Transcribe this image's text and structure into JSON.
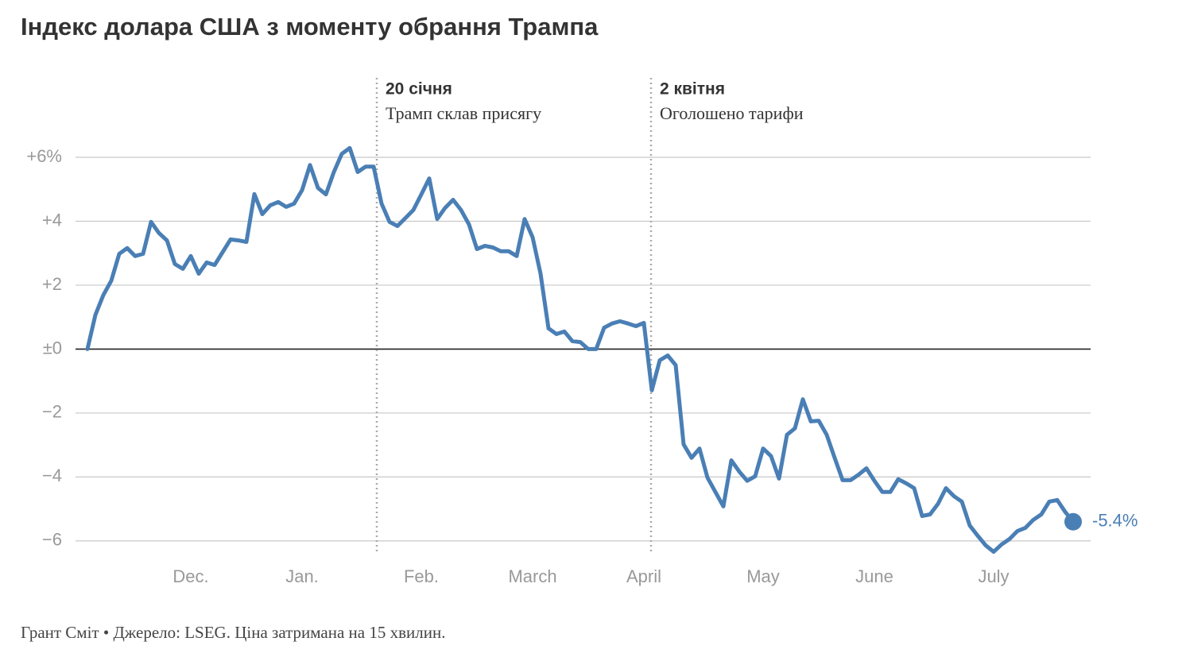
{
  "chart_data": {
    "type": "line",
    "title": "Індекс долара США з моменту обрання Трампа",
    "footer": "Грант Сміт • Джерело: LSEG. Ціна затримана на 15 хвилин.",
    "annotations": [
      {
        "title": "20 січня",
        "text": "Трамп склав присягу"
      },
      {
        "title": "2 квітня",
        "text": "Оголошено тарифи"
      }
    ],
    "categories": [
      null,
      null,
      null,
      null,
      null,
      null,
      null,
      null,
      null,
      null,
      null,
      null,
      null,
      "Dec.",
      null,
      null,
      null,
      null,
      null,
      null,
      null,
      null,
      null,
      null,
      null,
      null,
      null,
      "Jan.",
      null,
      null,
      null,
      null,
      null,
      null,
      null,
      null,
      null,
      null,
      null,
      null,
      null,
      null,
      "Feb.",
      null,
      null,
      null,
      null,
      null,
      null,
      null,
      null,
      null,
      null,
      null,
      null,
      null,
      "March",
      null,
      null,
      null,
      null,
      null,
      null,
      null,
      null,
      null,
      null,
      null,
      null,
      null,
      "April",
      null,
      null,
      null,
      null,
      null,
      null,
      null,
      null,
      null,
      null,
      null,
      null,
      null,
      null,
      "May",
      null,
      null,
      null,
      null,
      null,
      null,
      null,
      null,
      null,
      null,
      null,
      null,
      null,
      "June",
      null,
      null,
      null,
      null,
      null,
      null,
      null,
      null,
      null,
      null,
      null,
      null,
      null,
      null,
      "July",
      null,
      null,
      null,
      null,
      null,
      null,
      null,
      null,
      null,
      null
    ],
    "series": [
      {
        "name": "Індекс долара США",
        "color": "#4a7fb5",
        "values": [
          0,
          1.07,
          1.69,
          2.14,
          2.98,
          3.16,
          2.91,
          2.98,
          3.98,
          3.63,
          3.4,
          2.66,
          2.51,
          2.91,
          2.36,
          2.71,
          2.63,
          3.03,
          3.43,
          3.4,
          3.35,
          4.85,
          4.22,
          4.5,
          4.6,
          4.45,
          4.55,
          4.97,
          5.76,
          5.04,
          4.84,
          5.54,
          6.11,
          6.29,
          5.54,
          5.71,
          5.71,
          4.55,
          3.98,
          3.85,
          4.1,
          4.35,
          4.84,
          5.34,
          4.07,
          4.42,
          4.67,
          4.35,
          3.9,
          3.13,
          3.23,
          3.18,
          3.06,
          3.06,
          2.91,
          4.07,
          3.5,
          2.36,
          0.65,
          0.47,
          0.55,
          0.25,
          0.22,
          0,
          0,
          0.67,
          0.8,
          0.87,
          0.8,
          0.72,
          0.82,
          -1.29,
          -0.35,
          -0.2,
          -0.5,
          -2.98,
          -3.4,
          -3.11,
          -4.02,
          -4.47,
          -4.92,
          -3.48,
          -3.83,
          -4.12,
          -3.98,
          -3.11,
          -3.35,
          -4.05,
          -2.68,
          -2.48,
          -1.57,
          -2.26,
          -2.24,
          -2.68,
          -3.4,
          -4.1,
          -4.1,
          -3.93,
          -3.73,
          -4.12,
          -4.47,
          -4.47,
          -4.07,
          -4.2,
          -4.35,
          -5.22,
          -5.17,
          -4.84,
          -4.35,
          -4.6,
          -4.77,
          -5.52,
          -5.84,
          -6.14,
          -6.34,
          -6.11,
          -5.94,
          -5.69,
          -5.59,
          -5.34,
          -5.17,
          -4.77,
          -4.72,
          -5.09,
          -5.4
        ],
        "value_labels": [
          null,
          null,
          null,
          null,
          null,
          null,
          null,
          null,
          null,
          null,
          null,
          null,
          null,
          null,
          null,
          null,
          null,
          null,
          null,
          null,
          null,
          null,
          null,
          null,
          null,
          null,
          null,
          null,
          null,
          null,
          null,
          null,
          null,
          null,
          null,
          null,
          null,
          null,
          null,
          null,
          null,
          null,
          null,
          null,
          null,
          null,
          null,
          null,
          null,
          null,
          null,
          null,
          null,
          null,
          null,
          null,
          null,
          null,
          null,
          null,
          null,
          null,
          null,
          null,
          null,
          null,
          null,
          null,
          null,
          null,
          null,
          null,
          null,
          null,
          null,
          null,
          null,
          null,
          null,
          null,
          null,
          null,
          null,
          null,
          null,
          null,
          null,
          null,
          null,
          null,
          null,
          null,
          null,
          null,
          null,
          null,
          null,
          null,
          null,
          null,
          null,
          null,
          null,
          null,
          null,
          null,
          null,
          null,
          null,
          null,
          null,
          null,
          null,
          null,
          null,
          null,
          null,
          null,
          null,
          null,
          null,
          null,
          null,
          null,
          "-5.4%"
        ]
      }
    ],
    "ylim": [
      -6.5,
      6
    ],
    "yticks": [
      {
        "value": 6,
        "label": "+6%"
      },
      {
        "value": 4,
        "label": "+4"
      },
      {
        "value": 2,
        "label": "+2"
      },
      {
        "value": 0,
        "label": "±0"
      },
      {
        "value": -2,
        "label": "−2"
      },
      {
        "value": -4,
        "label": "−4"
      },
      {
        "value": -6,
        "label": "−6"
      }
    ],
    "grid": true
  }
}
